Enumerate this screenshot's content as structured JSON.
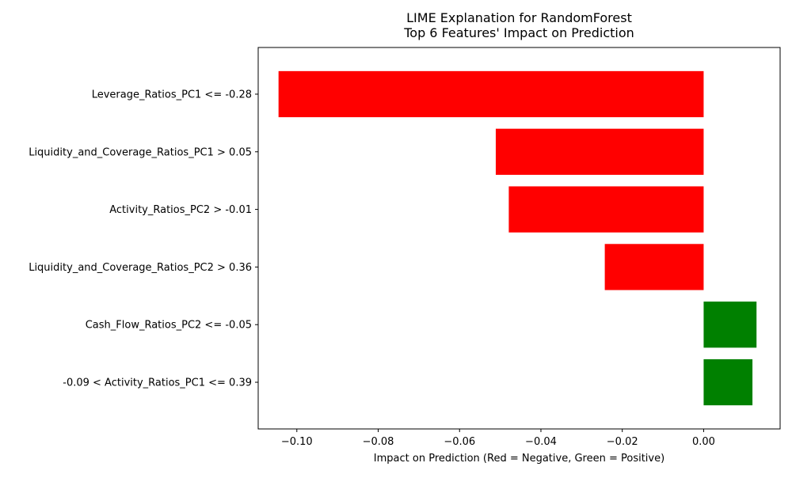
{
  "chart_data": {
    "type": "bar",
    "orientation": "horizontal",
    "title": "LIME Explanation for RandomForest\nTop 6 Features' Impact on Prediction",
    "title_lines": [
      "LIME Explanation for RandomForest",
      "Top 6 Features' Impact on Prediction"
    ],
    "xlabel": "Impact on Prediction (Red = Negative, Green = Positive)",
    "ylabel": "",
    "categories": [
      "Leverage_Ratios_PC1 <= -0.28",
      "Liquidity_and_Coverage_Ratios_PC1 > 0.05",
      "Activity_Ratios_PC2 > -0.01",
      "Liquidity_and_Coverage_Ratios_PC2 > 0.36",
      "Cash_Flow_Ratios_PC2 <= -0.05",
      "-0.09 < Activity_Ratios_PC1 <= 0.39"
    ],
    "values": [
      -0.1045,
      -0.0511,
      -0.0479,
      -0.0243,
      0.013,
      0.012
    ],
    "bar_colors": [
      "#ff0000",
      "#ff0000",
      "#ff0000",
      "#ff0000",
      "#008000",
      "#008000"
    ],
    "xlim": [
      -0.1095,
      0.0188
    ],
    "xticks": [
      -0.1,
      -0.08,
      -0.06,
      -0.04,
      -0.02,
      0.0
    ],
    "xtick_labels": [
      "−0.10",
      "−0.08",
      "−0.06",
      "−0.04",
      "−0.02",
      "0.00"
    ],
    "grid": false,
    "legend": "none"
  }
}
